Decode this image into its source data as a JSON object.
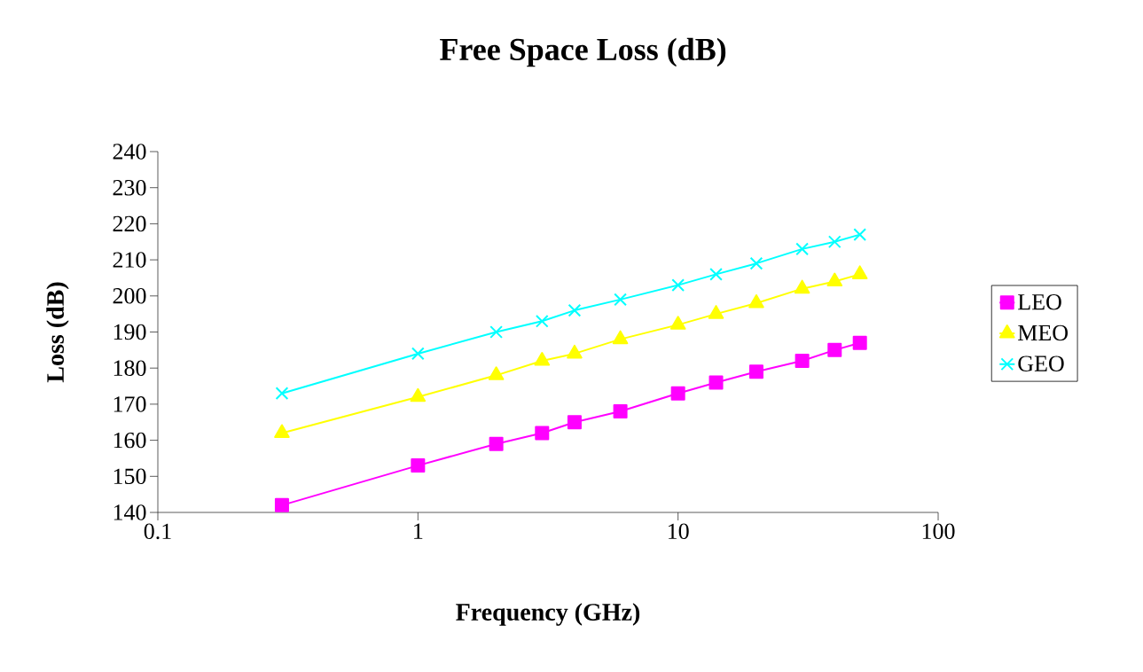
{
  "chart_data": {
    "type": "line",
    "title": "Free Space Loss (dB)",
    "xlabel": "Frequency (GHz)",
    "ylabel": "Loss (dB)",
    "log": "x",
    "xlim": [
      0.1,
      100
    ],
    "xticks": [
      0.1,
      1,
      10,
      100
    ],
    "ylim": [
      140,
      240
    ],
    "yticks": [
      140,
      150,
      160,
      170,
      180,
      190,
      200,
      210,
      220,
      230,
      240
    ],
    "x": [
      0.3,
      1,
      2,
      3,
      4,
      6,
      10,
      14,
      20,
      30,
      40,
      50
    ],
    "grid": false,
    "legend": "right",
    "line_style": "solid",
    "series": [
      {
        "name": "LEO",
        "color": "#ff00ff",
        "marker": "square",
        "values": [
          142,
          153,
          159,
          162,
          165,
          168,
          173,
          176,
          179,
          182,
          185,
          187
        ]
      },
      {
        "name": "MEO",
        "color": "#ffff00",
        "marker": "triangle",
        "values": [
          162,
          172,
          178,
          182,
          184,
          188,
          192,
          195,
          198,
          202,
          204,
          206
        ]
      },
      {
        "name": "GEO",
        "color": "#00ffff",
        "marker": "cross",
        "values": [
          173,
          184,
          190,
          193,
          196,
          199,
          203,
          206,
          209,
          213,
          215,
          217
        ]
      }
    ]
  }
}
